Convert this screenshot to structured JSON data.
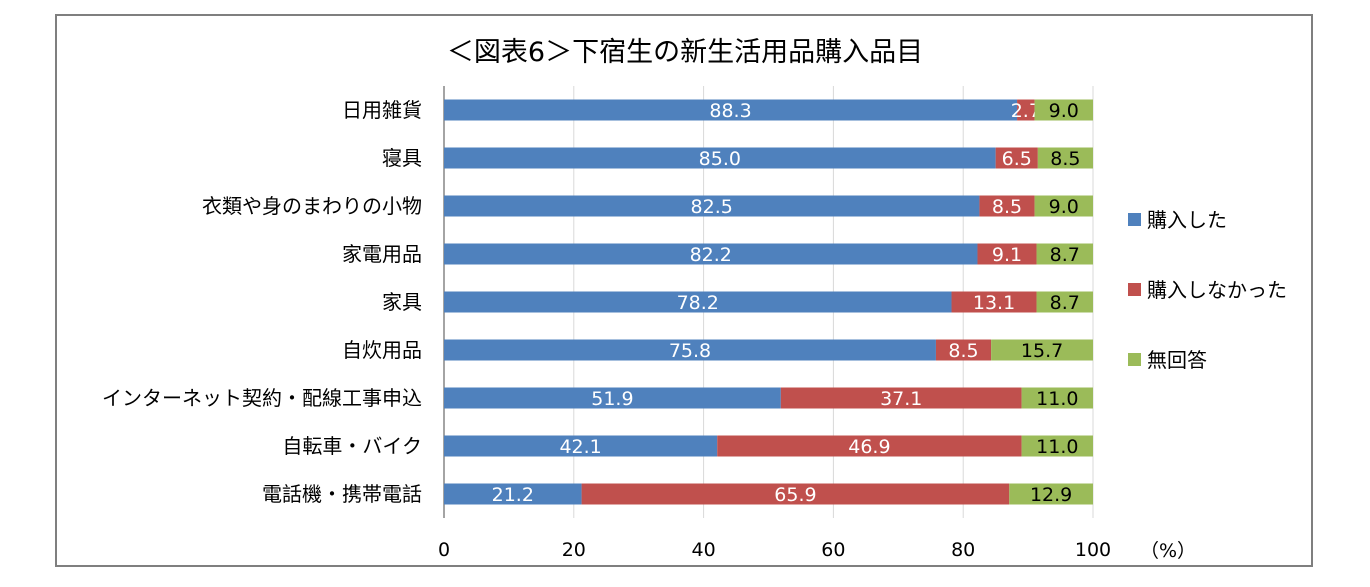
{
  "chart_data": {
    "type": "bar",
    "orientation": "horizontal",
    "stacked": true,
    "title": "＜図表6＞下宿生の新生活用品購入品目",
    "categories": [
      "日用雑貨",
      "寝具",
      "衣類や身のまわりの小物",
      "家電用品",
      "家具",
      "自炊用品",
      "インターネット契約・配線工事申込",
      "自転車・バイク",
      "電話機・携帯電話"
    ],
    "series": [
      {
        "name": "購入した",
        "color": "#4f81bd",
        "values": [
          88.3,
          85.0,
          82.5,
          82.2,
          78.2,
          75.8,
          51.9,
          42.1,
          21.2
        ]
      },
      {
        "name": "購入しなかった",
        "color": "#c0504d",
        "values": [
          2.7,
          6.5,
          8.5,
          9.1,
          13.1,
          8.5,
          37.1,
          46.9,
          65.9
        ]
      },
      {
        "name": "無回答",
        "color": "#9bbb59",
        "values": [
          9.0,
          8.5,
          9.0,
          8.7,
          8.7,
          15.7,
          11.0,
          11.0,
          12.9
        ]
      }
    ],
    "xlim": [
      0,
      100
    ],
    "xticks": [
      "0",
      "20",
      "40",
      "60",
      "80",
      "100"
    ],
    "unit_label": "（%）",
    "grid": true,
    "legend_position": "right"
  }
}
